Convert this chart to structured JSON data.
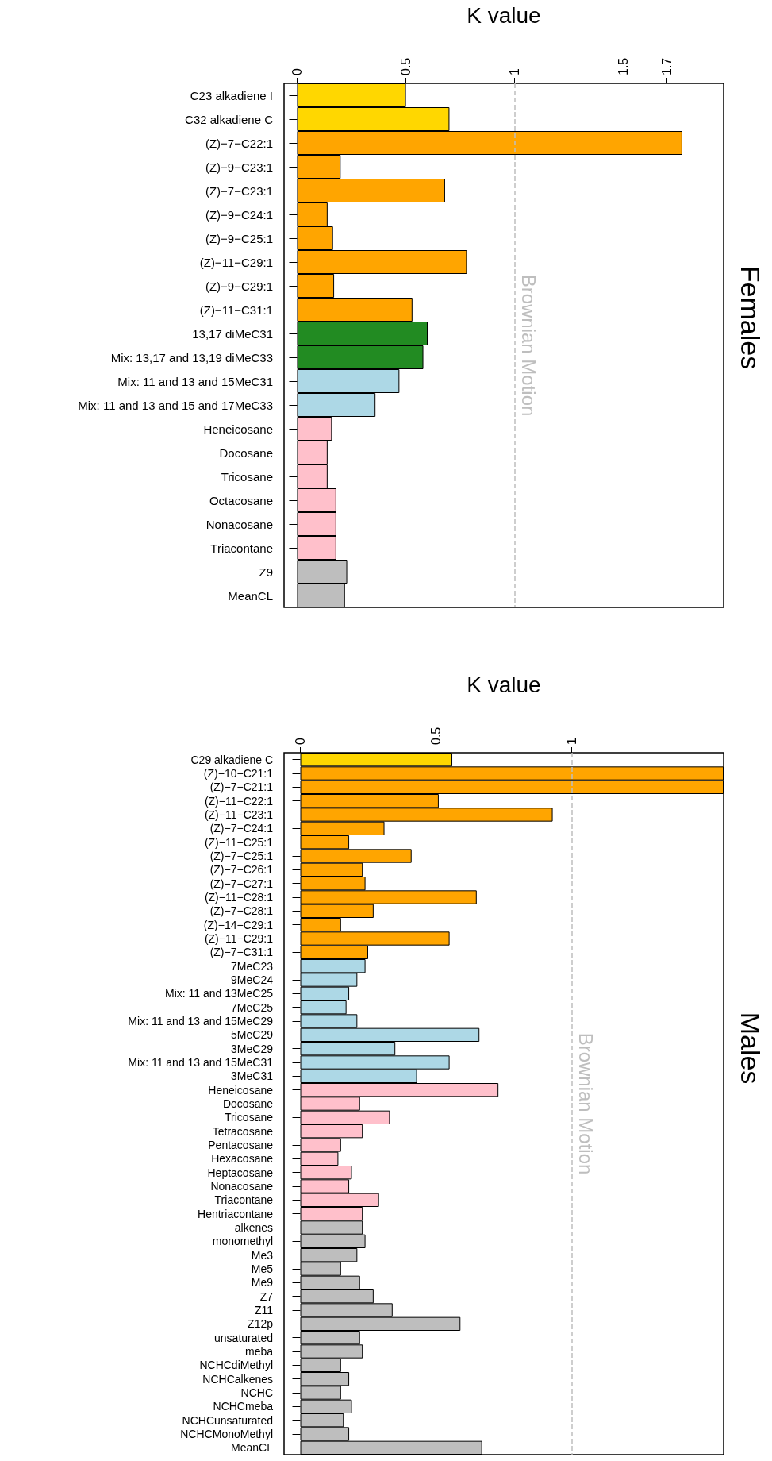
{
  "chart_data": [
    {
      "type": "bar",
      "orientation": "horizontal",
      "title": "Females",
      "xlabel": "K value",
      "categories": [
        "C23 alkadiene I",
        "C32 alkadiene C",
        "(Z)−7−C22:1",
        "(Z)−9−C23:1",
        "(Z)−7−C23:1",
        "(Z)−9−C24:1",
        "(Z)−9−C25:1",
        "(Z)−11−C29:1",
        "(Z)−9−C29:1",
        "(Z)−11−C31:1",
        "13,17 diMeC31",
        "Mix: 13,17 and 13,19 diMeC33",
        "Mix: 11 and 13 and 15MeC31",
        "Mix: 11 and 13 and 15 and 17MeC33",
        "Heneicosane",
        "Docosane",
        "Tricosane",
        "Octacosane",
        "Nonacosane",
        "Triacontane",
        "Z9",
        "MeanCL"
      ],
      "values": [
        0.5,
        0.7,
        1.77,
        0.2,
        0.68,
        0.14,
        0.165,
        0.78,
        0.17,
        0.53,
        0.6,
        0.58,
        0.47,
        0.36,
        0.16,
        0.14,
        0.14,
        0.18,
        0.18,
        0.18,
        0.23,
        0.22
      ],
      "colors": [
        "#ffd700",
        "#ffd700",
        "#ffa500",
        "#ffa500",
        "#ffa500",
        "#ffa500",
        "#ffa500",
        "#ffa500",
        "#ffa500",
        "#ffa500",
        "#228b22",
        "#228b22",
        "#add8e6",
        "#add8e6",
        "#ffc0cb",
        "#ffc0cb",
        "#ffc0cb",
        "#ffc0cb",
        "#ffc0cb",
        "#ffc0cb",
        "#bebebe",
        "#bebebe"
      ],
      "xlim": [
        -0.06,
        1.96
      ],
      "xticks": [
        0,
        0.5,
        1,
        1.5,
        1.7
      ],
      "ref_lines": [
        {
          "axis": "x",
          "value": 1,
          "label": "Brownian Motion",
          "color": "#bebebe",
          "line_style": "dashed"
        }
      ]
    },
    {
      "type": "bar",
      "orientation": "horizontal",
      "title": "Males",
      "xlabel": "K value",
      "categories": [
        "C29 alkadiene C",
        "(Z)−10−C21:1",
        "(Z)−7−C21:1",
        "(Z)−11−C22:1",
        "(Z)−11−C23:1",
        "(Z)−7−C24:1",
        "(Z)−11−C25:1",
        "(Z)−7−C25:1",
        "(Z)−7−C26:1",
        "(Z)−7−C27:1",
        "(Z)−11−C28:1",
        "(Z)−7−C28:1",
        "(Z)−14−C29:1",
        "(Z)−11−C29:1",
        "(Z)−7−C31:1",
        "7MeC23",
        "9MeC24",
        "Mix: 11 and 13MeC25",
        "7MeC25",
        "Mix: 11 and 13 and 15MeC29",
        "5MeC29",
        "3MeC29",
        "Mix: 11 and 13 and 15MeC31",
        "3MeC31",
        "Heneicosane",
        "Docosane",
        "Tricosane",
        "Tetracosane",
        "Pentacosane",
        "Hexacosane",
        "Heptacosane",
        "Nonacosane",
        "Triacontane",
        "Hentriacontane",
        "alkenes",
        "monomethyl",
        "Me3",
        "Me5",
        "Me9",
        "Z7",
        "Z11",
        "Z12p",
        "unsaturated",
        "meba",
        "NCHCdiMethyl",
        "NCHCalkenes",
        "NCHC",
        "NCHCmeba",
        "NCHCunsaturated",
        "NCHCMonoMethyl",
        "MeanCL"
      ],
      "values": [
        0.56,
        1.56,
        1.56,
        0.51,
        0.93,
        0.31,
        0.18,
        0.41,
        0.23,
        0.24,
        0.65,
        0.27,
        0.15,
        0.55,
        0.25,
        0.24,
        0.21,
        0.18,
        0.17,
        0.21,
        0.66,
        0.35,
        0.55,
        0.43,
        0.73,
        0.22,
        0.33,
        0.23,
        0.15,
        0.14,
        0.19,
        0.18,
        0.29,
        0.23,
        0.23,
        0.24,
        0.21,
        0.15,
        0.22,
        0.27,
        0.34,
        0.59,
        0.22,
        0.23,
        0.15,
        0.18,
        0.15,
        0.19,
        0.16,
        0.18,
        0.67
      ],
      "colors": [
        "#ffd700",
        "#ffa500",
        "#ffa500",
        "#ffa500",
        "#ffa500",
        "#ffa500",
        "#ffa500",
        "#ffa500",
        "#ffa500",
        "#ffa500",
        "#ffa500",
        "#ffa500",
        "#ffa500",
        "#ffa500",
        "#ffa500",
        "#add8e6",
        "#add8e6",
        "#add8e6",
        "#add8e6",
        "#add8e6",
        "#add8e6",
        "#add8e6",
        "#add8e6",
        "#add8e6",
        "#ffc0cb",
        "#ffc0cb",
        "#ffc0cb",
        "#ffc0cb",
        "#ffc0cb",
        "#ffc0cb",
        "#ffc0cb",
        "#ffc0cb",
        "#ffc0cb",
        "#ffc0cb",
        "#bebebe",
        "#bebebe",
        "#bebebe",
        "#bebebe",
        "#bebebe",
        "#bebebe",
        "#bebebe",
        "#bebebe",
        "#bebebe",
        "#bebebe",
        "#bebebe",
        "#bebebe",
        "#bebebe",
        "#bebebe",
        "#bebebe",
        "#bebebe",
        "#bebebe"
      ],
      "xlim": [
        -0.06,
        1.56
      ],
      "xticks": [
        0,
        0.5,
        1
      ],
      "ref_lines": [
        {
          "axis": "x",
          "value": 1,
          "label": "Brownian Motion",
          "color": "#bebebe",
          "line_style": "dashed"
        }
      ]
    }
  ]
}
